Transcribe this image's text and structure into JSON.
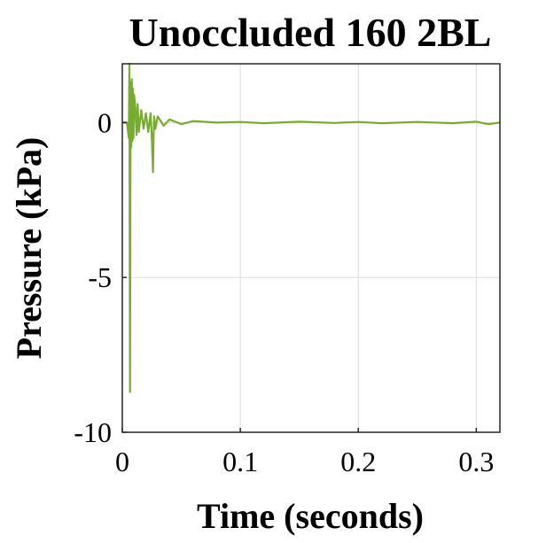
{
  "chart_data": {
    "type": "line",
    "title": "Unoccluded 160 2BL",
    "xlabel": "Time (seconds)",
    "ylabel": "Pressure (kPa)",
    "xlim": [
      0,
      0.32
    ],
    "ylim": [
      -10,
      1.9
    ],
    "xticks": [
      0,
      0.1,
      0.2,
      0.3
    ],
    "xtick_labels": [
      "0",
      "0.1",
      "0.2",
      "0.3"
    ],
    "yticks": [
      -10,
      -5,
      0
    ],
    "ytick_labels": [
      "-10",
      "-5",
      "0"
    ],
    "grid": true,
    "legend": "none",
    "series": [
      {
        "color": "#77ac30",
        "x": [
          0,
          0.004,
          0.0055,
          0.006,
          0.0065,
          0.007,
          0.0075,
          0.008,
          0.0085,
          0.009,
          0.0095,
          0.01,
          0.011,
          0.012,
          0.013,
          0.014,
          0.016,
          0.018,
          0.02,
          0.022,
          0.024,
          0.025,
          0.026,
          0.0265,
          0.027,
          0.028,
          0.03,
          0.035,
          0.04,
          0.05,
          0.06,
          0.08,
          0.1,
          0.12,
          0.15,
          0.18,
          0.2,
          0.22,
          0.25,
          0.28,
          0.3,
          0.31,
          0.32
        ],
        "y": [
          0,
          0,
          -0.5,
          1.9,
          -8.7,
          1.3,
          -0.8,
          1.4,
          -0.6,
          1.1,
          -0.5,
          0.9,
          0.5,
          -0.4,
          0.6,
          -0.3,
          0.4,
          -0.2,
          0.3,
          -0.3,
          0.3,
          -0.5,
          -1.6,
          -0.4,
          0.2,
          -0.2,
          0.2,
          -0.1,
          0.1,
          -0.05,
          0.05,
          0.0,
          0.02,
          -0.02,
          0.03,
          -0.01,
          0.02,
          -0.02,
          0.02,
          -0.02,
          0.03,
          -0.05,
          0.0
        ]
      }
    ]
  }
}
